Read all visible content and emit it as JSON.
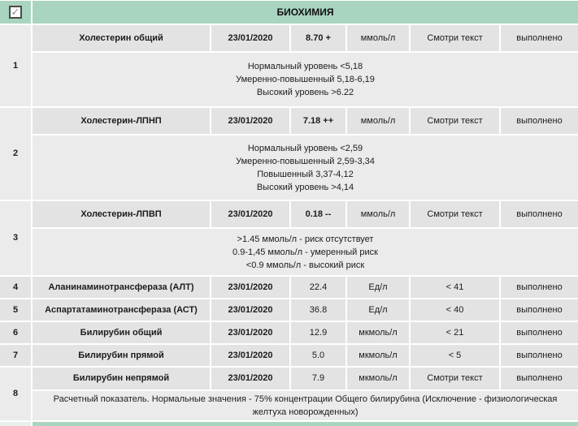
{
  "header": {
    "title": "БИОХИМИЯ",
    "checkbox_checked": true
  },
  "colors": {
    "section_green": "#a9d4c0",
    "cell_gray": "#e3e3e3",
    "note_gray": "#ebebeb"
  },
  "rows": [
    {
      "num": "1",
      "name": "Холестерин общий",
      "date": "23/01/2020",
      "value": "8.70 +",
      "units": "ммоль/л",
      "reference": "Смотри текст",
      "status": "выполнено",
      "note": [
        "Нормальный уровень <5,18",
        "Умеренно-повышенный 5,18-6,19",
        "Высокий уровень >6.22"
      ]
    },
    {
      "num": "2",
      "name": "Холестерин-ЛПНП",
      "date": "23/01/2020",
      "value": "7.18 ++",
      "units": "ммоль/л",
      "reference": "Смотри текст",
      "status": "выполнено",
      "note": [
        "Нормальный уровень <2,59",
        "Умеренно-повышенный 2,59-3,34",
        "Повышенный 3,37-4,12",
        "Высокий уровень >4,14"
      ]
    },
    {
      "num": "3",
      "name": "Холестерин-ЛПВП",
      "date": "23/01/2020",
      "value": "0.18 --",
      "units": "ммоль/л",
      "reference": "Смотри текст",
      "status": "выполнено",
      "note": [
        ">1.45 ммоль/л - риск отсутствует",
        "0.9-1,45 ммоль/л - умеренный риск",
        "<0.9 ммоль/л - высокий риск"
      ]
    },
    {
      "num": "4",
      "name": "Аланинаминотрансфераза (АЛТ)",
      "date": "23/01/2020",
      "value": "22.4",
      "units": "Ед/л",
      "reference": "< 41",
      "status": "выполнено"
    },
    {
      "num": "5",
      "name": "Аспартатаминотрансфераза (АСТ)",
      "date": "23/01/2020",
      "value": "36.8",
      "units": "Ед/л",
      "reference": "< 40",
      "status": "выполнено"
    },
    {
      "num": "6",
      "name": "Билирубин общий",
      "date": "23/01/2020",
      "value": "12.9",
      "units": "мкмоль/л",
      "reference": "< 21",
      "status": "выполнено"
    },
    {
      "num": "7",
      "name": "Билирубин прямой",
      "date": "23/01/2020",
      "value": "5.0",
      "units": "мкмоль/л",
      "reference": "< 5",
      "status": "выполнено"
    },
    {
      "num": "8",
      "name": "Билирубин непрямой",
      "date": "23/01/2020",
      "value": "7.9",
      "units": "мкмоль/л",
      "reference": "Смотри текст",
      "status": "выполнено",
      "note": [
        "Расчетный показатель. Нормальные значения - 75% концентрации Общего билирубина (Исключение - физиологическая желтуха новорожденных)"
      ]
    }
  ]
}
